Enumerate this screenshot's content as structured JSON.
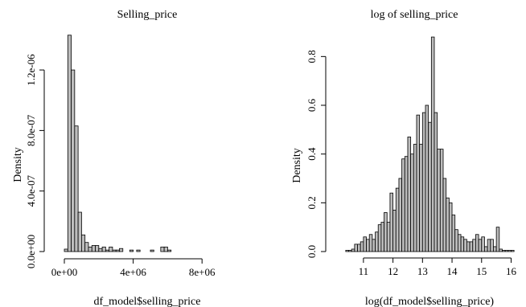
{
  "chart_data": [
    {
      "type": "bar",
      "title": "Selling_price",
      "xlabel": "df_model$selling_price",
      "ylabel": "Density",
      "xlim": [
        0,
        10000000
      ],
      "ylim": [
        0,
        1.45e-06
      ],
      "x_ticks": [
        {
          "value": 0,
          "label": "0e+00"
        },
        {
          "value": 4000000,
          "label": "4e+06"
        },
        {
          "value": 8000000,
          "label": "8e+06"
        }
      ],
      "y_ticks": [
        {
          "value": 0,
          "label": "0.0e+00"
        },
        {
          "value": 4e-07,
          "label": "4.0e-07"
        },
        {
          "value": 8e-07,
          "label": "8.0e-07"
        },
        {
          "value": 1.2e-06,
          "label": "1.2e-06"
        }
      ],
      "bin_start": 0,
      "bin_width": 200000,
      "values": [
        1.6e-08,
        1.43e-06,
        1.2e-06,
        8.3e-07,
        2.6e-07,
        1.1e-07,
        6e-08,
        3e-08,
        4e-08,
        4e-08,
        2e-08,
        3e-08,
        1e-08,
        3e-08,
        1e-08,
        1e-08,
        2e-08,
        0,
        0,
        1e-08,
        0,
        1e-08,
        0,
        0,
        0,
        1e-08,
        0,
        0,
        3e-08,
        3e-08,
        1e-08,
        0,
        0,
        0,
        0,
        0,
        0,
        0,
        0,
        0,
        0,
        0,
        0,
        0,
        0,
        0,
        0,
        0,
        0,
        0
      ]
    },
    {
      "type": "bar",
      "title": "log of selling_price",
      "xlabel": "log(df_model$selling_price)",
      "ylabel": "Density",
      "xlim": [
        10.35,
        16.15
      ],
      "ylim": [
        0,
        0.9
      ],
      "x_ticks": [
        {
          "value": 11,
          "label": "11"
        },
        {
          "value": 12,
          "label": "12"
        },
        {
          "value": 13,
          "label": "13"
        },
        {
          "value": 14,
          "label": "14"
        },
        {
          "value": 15,
          "label": "15"
        },
        {
          "value": 16,
          "label": "16"
        }
      ],
      "y_ticks": [
        {
          "value": 0,
          "label": "0.0"
        },
        {
          "value": 0.2,
          "label": "0.2"
        },
        {
          "value": 0.4,
          "label": "0.4"
        },
        {
          "value": 0.6,
          "label": "0.6"
        },
        {
          "value": 0.8,
          "label": "0.8"
        }
      ],
      "bin_start": 10.4,
      "bin_width": 0.1,
      "values": [
        0.005,
        0.005,
        0.01,
        0.03,
        0.03,
        0.04,
        0.06,
        0.05,
        0.07,
        0.05,
        0.08,
        0.11,
        0.12,
        0.16,
        0.12,
        0.24,
        0.17,
        0.26,
        0.3,
        0.38,
        0.39,
        0.47,
        0.4,
        0.44,
        0.56,
        0.44,
        0.57,
        0.6,
        0.53,
        0.88,
        0.57,
        0.42,
        0.42,
        0.3,
        0.22,
        0.2,
        0.15,
        0.09,
        0.07,
        0.06,
        0.05,
        0.04,
        0.04,
        0.05,
        0.07,
        0.05,
        0.06,
        0.02,
        0.05,
        0.05,
        0.02,
        0.1,
        0.01,
        0.005,
        0.005,
        0.005,
        0.005
      ]
    }
  ]
}
